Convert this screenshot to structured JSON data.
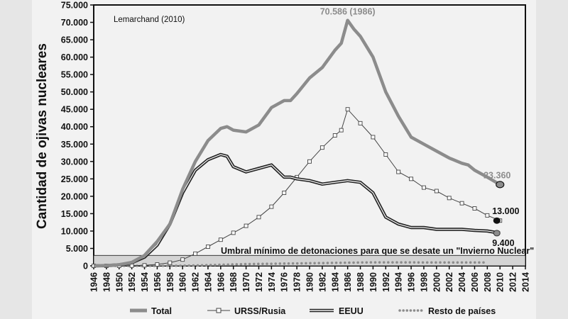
{
  "chart_data": {
    "type": "line",
    "annotation_source": "Lemarchand (2010)",
    "ylabel": "Cantidad de ojivas nucleares",
    "xlabel": "",
    "xlim": [
      1946,
      2014
    ],
    "ylim": [
      0,
      75000
    ],
    "x_ticks": [
      "1946",
      "1948",
      "1950",
      "1952",
      "1954",
      "1956",
      "1958",
      "1960",
      "1962",
      "1964",
      "1966",
      "1968",
      "1970",
      "1972",
      "1974",
      "1976",
      "1978",
      "1980",
      "1982",
      "1984",
      "1986",
      "1988",
      "1990",
      "1992",
      "1994",
      "1996",
      "1998",
      "2000",
      "2002",
      "2004",
      "2006",
      "2008",
      "2010",
      "2012",
      "2014"
    ],
    "y_ticks": [
      "0",
      "5.000",
      "10.000",
      "15.000",
      "20.000",
      "25.000",
      "30.000",
      "35.000",
      "40.000",
      "45.000",
      "50.000",
      "55.000",
      "60.000",
      "65.000",
      "70.000",
      "75.000"
    ],
    "threshold": {
      "label": "Umbral mínimo de detonaciones para que se desate un \"Invierno Nuclear\"",
      "from": 0,
      "to": 3000
    },
    "annotations": [
      {
        "text": "70.586 (1986)",
        "series": "Total",
        "x": 1986,
        "y": 70586
      },
      {
        "text": "23.360",
        "series": "Total",
        "x": 2010,
        "y": 23360
      },
      {
        "text": "13.000",
        "series": "URSS/Rusia",
        "x": 2010,
        "y": 13000
      },
      {
        "text": "9.400",
        "series": "EEUU",
        "x": 2010,
        "y": 9400
      }
    ],
    "series": [
      {
        "name": "Total",
        "color": "#8c8c8c",
        "x": [
          1946,
          1948,
          1950,
          1952,
          1954,
          1956,
          1958,
          1960,
          1962,
          1964,
          1966,
          1967,
          1968,
          1970,
          1972,
          1974,
          1976,
          1977,
          1978,
          1980,
          1982,
          1984,
          1985,
          1986,
          1987,
          1988,
          1990,
          1992,
          1994,
          1995,
          1996,
          1998,
          2000,
          2002,
          2004,
          2005,
          2006,
          2008,
          2010
        ],
        "values": [
          0,
          100,
          300,
          1000,
          3000,
          7000,
          12000,
          22000,
          30000,
          36000,
          39500,
          40000,
          39000,
          38500,
          40500,
          45500,
          47500,
          47500,
          49500,
          54000,
          57000,
          62000,
          64000,
          70586,
          68000,
          66000,
          60000,
          50000,
          43000,
          40000,
          37000,
          35000,
          33000,
          31000,
          29500,
          29000,
          27500,
          25500,
          23360
        ]
      },
      {
        "name": "URSS/Rusia",
        "color": "#444444",
        "x": [
          1946,
          1948,
          1950,
          1952,
          1954,
          1956,
          1958,
          1960,
          1962,
          1964,
          1966,
          1968,
          1970,
          1972,
          1974,
          1976,
          1978,
          1980,
          1982,
          1984,
          1985,
          1986,
          1988,
          1990,
          1992,
          1994,
          1996,
          1998,
          2000,
          2002,
          2004,
          2006,
          2008,
          2010
        ],
        "values": [
          0,
          0,
          5,
          50,
          150,
          400,
          900,
          1800,
          3500,
          5500,
          7500,
          9500,
          11500,
          14000,
          17000,
          21000,
          25500,
          30000,
          34000,
          37500,
          39000,
          45000,
          41000,
          37000,
          32000,
          27000,
          25000,
          22500,
          21500,
          19500,
          18000,
          16500,
          14500,
          13000
        ]
      },
      {
        "name": "EEUU",
        "color": "#222222",
        "x": [
          1946,
          1948,
          1950,
          1952,
          1954,
          1956,
          1958,
          1960,
          1962,
          1964,
          1966,
          1967,
          1968,
          1970,
          1972,
          1974,
          1976,
          1977,
          1978,
          1980,
          1982,
          1984,
          1986,
          1988,
          1990,
          1992,
          1994,
          1996,
          1998,
          2000,
          2002,
          2004,
          2006,
          2008,
          2010
        ],
        "values": [
          0,
          50,
          300,
          900,
          2500,
          6000,
          12000,
          21000,
          27500,
          30500,
          32000,
          31500,
          28500,
          27000,
          28000,
          29000,
          25500,
          25500,
          25000,
          24500,
          23500,
          24000,
          24500,
          24000,
          21000,
          14000,
          12000,
          11000,
          11000,
          10500,
          10500,
          10500,
          10200,
          10000,
          9400
        ]
      },
      {
        "name": "Resto de países",
        "color": "#8c8c8c",
        "x": [
          1946,
          1948,
          1950,
          1952,
          1954,
          1956,
          1958,
          1960,
          1962,
          1964,
          1966,
          1968,
          1970,
          1972,
          1974,
          1976,
          1978,
          1980,
          1982,
          1984,
          1986,
          1988,
          1990,
          1992,
          1994,
          1996,
          1998,
          2000,
          2002,
          2004,
          2006,
          2008
        ],
        "values": [
          0,
          0,
          0,
          0,
          0,
          0,
          20,
          40,
          100,
          200,
          300,
          400,
          500,
          550,
          600,
          650,
          700,
          750,
          800,
          850,
          900,
          950,
          1000,
          1000,
          1000,
          1000,
          950,
          950,
          950,
          950,
          950,
          950
        ]
      }
    ],
    "legend": [
      "Total",
      "URSS/Rusia",
      "EEUU",
      "Resto de países"
    ]
  }
}
